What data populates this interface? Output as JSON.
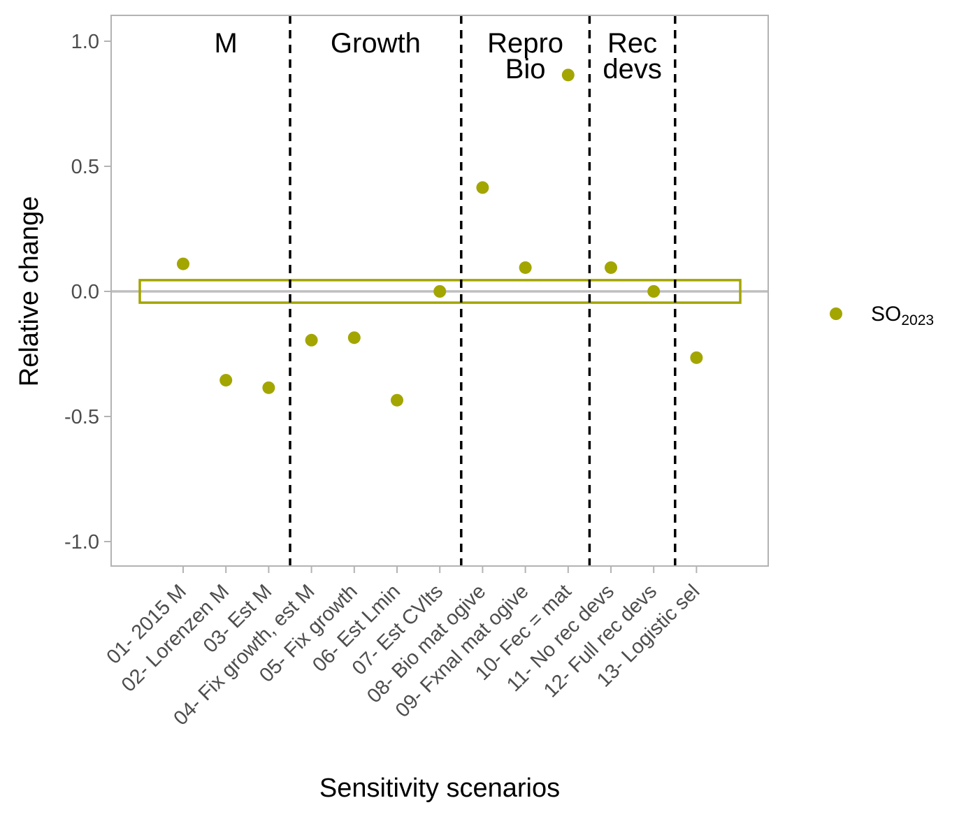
{
  "colors": {
    "series": "#a3a500",
    "panel_border": "#b3b3b3",
    "zero_line": "#bfbfbf",
    "separator": "#000000"
  },
  "chart_data": {
    "type": "scatter",
    "xlabel": "Sensitivity scenarios",
    "ylabel": "Relative change",
    "ylim": [
      -1.1,
      1.1
    ],
    "yticks": [
      {
        "value": 1.0,
        "label": "1.0"
      },
      {
        "value": 0.5,
        "label": "0.5"
      },
      {
        "value": 0.0,
        "label": "0.0"
      },
      {
        "value": -0.5,
        "label": "-0.5"
      },
      {
        "value": -1.0,
        "label": "-1.0"
      }
    ],
    "grid": false,
    "legend_position": "right",
    "categories": [
      "01- 2015 M",
      "02- Lorenzen M",
      "03- Est M",
      "04- Fix growth, est M",
      "05- Fix growth",
      "06- Est Lmin",
      "07- Est CVlts",
      "08- Bio mat ogive",
      "09- Fxnal mat ogive",
      "10- Fec = mat",
      "11- No rec devs",
      "12- Full rec devs",
      "13- Logistic sel"
    ],
    "series": [
      {
        "name": "SO",
        "name_subscript": "2023",
        "values": [
          0.11,
          -0.355,
          -0.385,
          -0.195,
          -0.185,
          -0.435,
          0.0,
          0.415,
          0.095,
          0.865,
          0.095,
          0.0,
          -0.265
        ]
      }
    ],
    "reference_band": {
      "ymin": -0.045,
      "ymax": 0.045
    },
    "reference_line": 0.0,
    "separators_after_index": [
      2,
      6,
      9,
      11
    ],
    "groups": [
      {
        "lines": [
          "M"
        ],
        "from": 0,
        "to": 2
      },
      {
        "lines": [
          "Growth"
        ],
        "from": 3,
        "to": 6
      },
      {
        "lines": [
          "Repro",
          "Bio"
        ],
        "from": 7,
        "to": 9
      },
      {
        "lines": [
          "Rec",
          "devs"
        ],
        "from": 10,
        "to": 11
      }
    ]
  }
}
